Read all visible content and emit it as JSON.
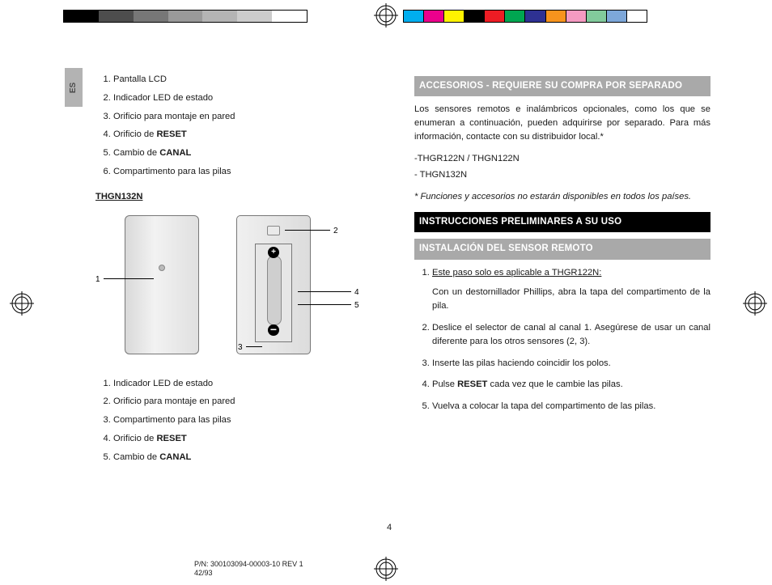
{
  "langTab": "ES",
  "colorBarTop": [
    "#000000",
    "#4d4d4d",
    "#777777",
    "#999999",
    "#b4b4b4",
    "#cccccc",
    "#ffffff"
  ],
  "colorBarTopR": [
    "#00aeef",
    "#ec008c",
    "#fff200",
    "#000000",
    "#ed1c24",
    "#00a651",
    "#2e3192",
    "#f7941d",
    "#f49ac1",
    "#82ca9c",
    "#7da7d9",
    "#ffffff"
  ],
  "leftList1": [
    {
      "t": "Pantalla LCD"
    },
    {
      "t": "Indicador LED de estado"
    },
    {
      "t": "Orificio para montaje en pared"
    },
    {
      "pre": "Orificio de ",
      "b": "RESET"
    },
    {
      "pre": "Cambio de ",
      "b": "CANAL"
    },
    {
      "t": "Compartimento para las pilas"
    }
  ],
  "model": "THGN132N",
  "callouts": {
    "c1": "1",
    "c2": "2",
    "c3": "3",
    "c4": "4",
    "c5": "5"
  },
  "leftList2": [
    {
      "t": "Indicador LED de estado"
    },
    {
      "t": "Orificio para montaje en pared"
    },
    {
      "t": "Compartimento para las pilas"
    },
    {
      "pre": "Orificio de ",
      "b": "RESET"
    },
    {
      "pre": "Cambio de ",
      "b": "CANAL"
    }
  ],
  "rbar1": "ACCESORIOS - REQUIERE SU COMPRA POR SEPARADO",
  "rp1": "Los sensores remotos e inalámbricos opcionales, como los que se enumeran a continuación, pueden adquirirse por separado.  Para más información, contacte con su distribuidor local.*",
  "rp2": "-THGR122N / THGN122N",
  "rp3": "- THGN132N",
  "rp4": "* Funciones y accesorios no estarán disponibles en todos los países.",
  "rbar2": "INSTRUCCIONES PRELIMINARES A SU USO",
  "rbar3": "INSTALACIÓN DEL SENSOR REMOTO",
  "steps": [
    {
      "u": "Este paso solo es aplicable a THGR122N:",
      "t": "Con un destornillador Phillips, abra la tapa del compartimento de la pila."
    },
    {
      "t": "Deslice el selector de canal al canal 1.  Asegúrese de usar un canal diferente para los otros sensores (2, 3)."
    },
    {
      "t": "Inserte las pilas haciendo coincidir los polos."
    },
    {
      "pre": "Pulse ",
      "b": "RESET",
      "post": " cada vez que le cambie las pilas."
    },
    {
      "t": "Vuelva a colocar la tapa del compartimento de las pilas."
    }
  ],
  "pageNum": "4",
  "pn1": "P/N: 300103094-00003-10 REV 1",
  "pn2": "42/93"
}
